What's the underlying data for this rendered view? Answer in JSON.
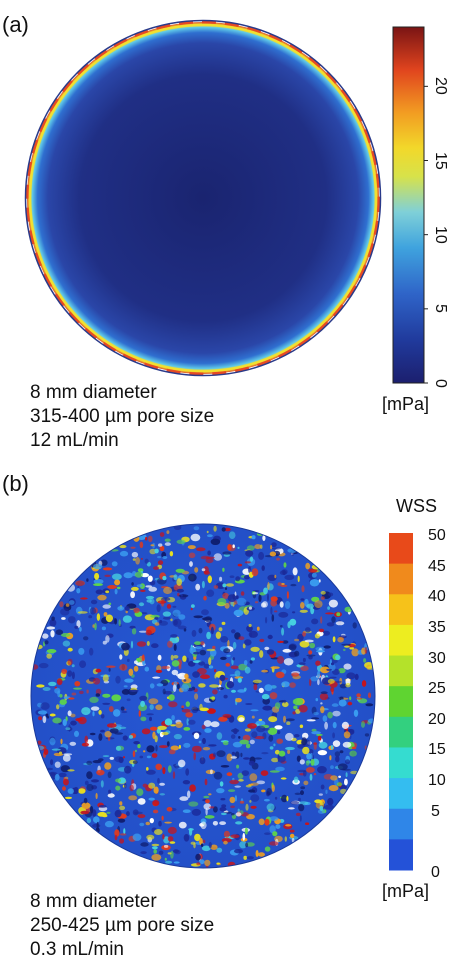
{
  "panel_a": {
    "label": "(a)",
    "caption": [
      "8 mm diameter",
      "315-400 µm pore size",
      "12 mL/min"
    ],
    "colorbar": {
      "unit": "[mPa]",
      "ticks": [
        "0",
        "5",
        "10",
        "15",
        "20"
      ],
      "tick_values": [
        0,
        5,
        10,
        15,
        20
      ],
      "range": [
        0,
        24
      ],
      "colormap": "jet"
    }
  },
  "panel_b": {
    "label": "(b)",
    "caption": [
      "8 mm diameter",
      "250-425 µm pore size",
      "0.3 mL/min"
    ],
    "colorbar": {
      "title": "WSS",
      "unit": "[mPa]",
      "ticks": [
        "50",
        "45",
        "40",
        "35",
        "30",
        "25",
        "20",
        "15",
        "10",
        "5",
        "0"
      ],
      "tick_values": [
        50,
        45,
        40,
        35,
        30,
        25,
        20,
        15,
        10,
        5,
        0
      ],
      "bins": [
        "#e84a1a",
        "#f08a1c",
        "#f6c21a",
        "#eded20",
        "#b4e22a",
        "#5fd431",
        "#33d07f",
        "#35dcd0",
        "#34bdf0",
        "#2f86e8",
        "#2452d8"
      ]
    }
  }
}
